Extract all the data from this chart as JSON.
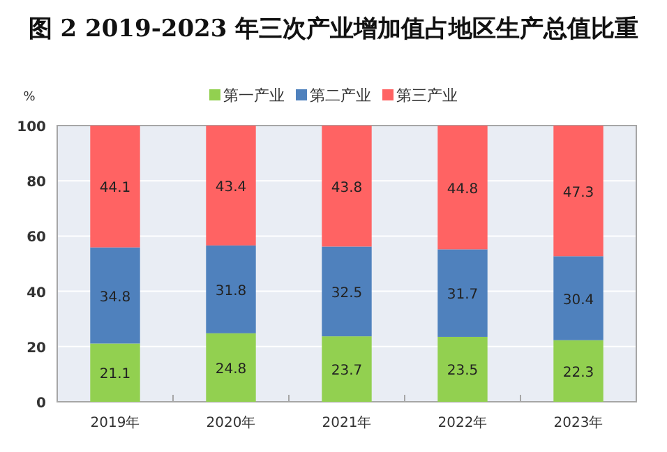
{
  "chart_data": {
    "type": "bar",
    "stacked": true,
    "title": "图 2 2019-2023 年三次产业增加值占地区生产总值比重",
    "ylabel": "%",
    "categories": [
      "2019年",
      "2020年",
      "2021年",
      "2022年",
      "2023年"
    ],
    "series": [
      {
        "name": "第一产业",
        "color": "#92d050",
        "values": [
          21.1,
          24.8,
          23.7,
          23.5,
          22.3
        ]
      },
      {
        "name": "第二产业",
        "color": "#4f81bd",
        "values": [
          34.8,
          31.8,
          32.5,
          31.7,
          30.4
        ]
      },
      {
        "name": "第三产业",
        "color": "#ff6363",
        "values": [
          44.1,
          43.4,
          43.8,
          44.8,
          47.3
        ]
      }
    ],
    "ylim": [
      0,
      100
    ],
    "yticks": [
      0,
      20,
      40,
      60,
      80,
      100
    ],
    "grid": "y",
    "legend": "top",
    "data_labels": true
  }
}
